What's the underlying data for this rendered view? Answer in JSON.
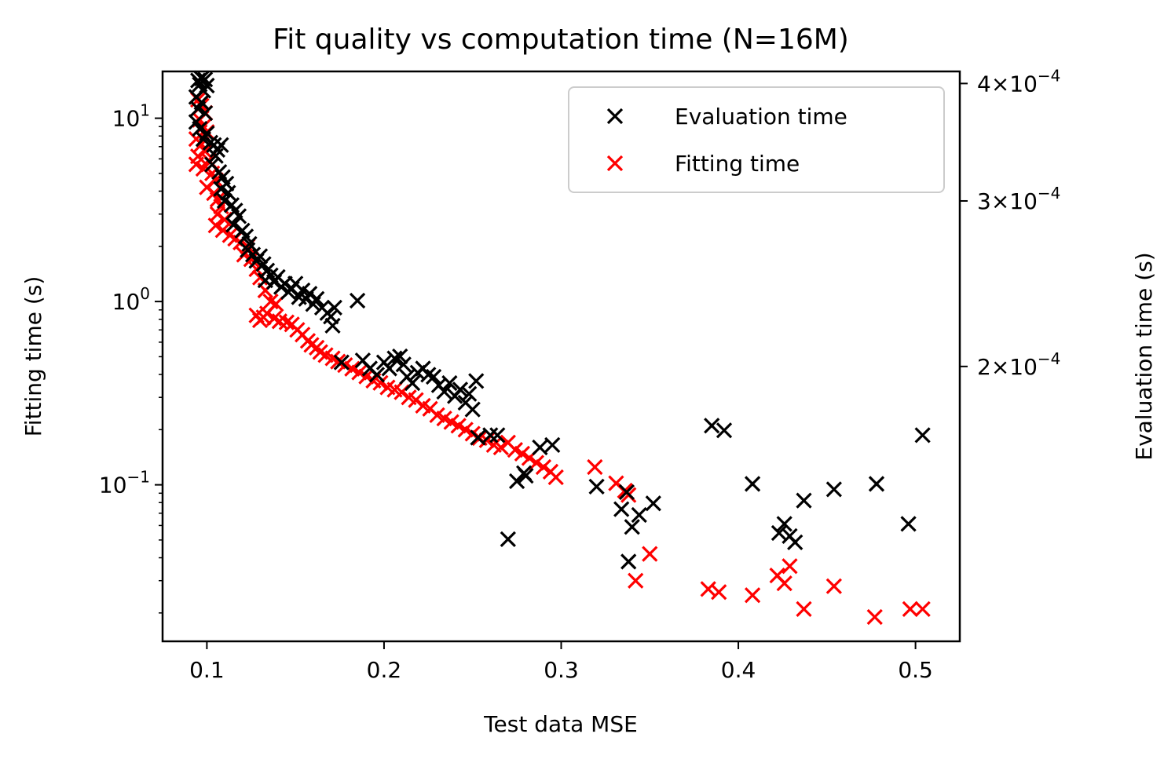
{
  "chart_data": {
    "type": "scatter",
    "title": "Fit quality vs computation time (N=16M)",
    "xlabel": "Test data MSE",
    "ylabel": "Fitting time (s)",
    "y2label": "Evaluation time (s)",
    "xlim": [
      0.075,
      0.525
    ],
    "ylim": [
      0.014,
      18
    ],
    "yscale": "log",
    "y2lim": [
      0.000102,
      0.000412
    ],
    "y2scale": "log",
    "xticks": [
      0.1,
      0.2,
      0.3,
      0.4,
      0.5
    ],
    "xtick_labels": [
      "0.1",
      "0.2",
      "0.3",
      "0.4",
      "0.5"
    ],
    "yticks": [
      0.1,
      1,
      10
    ],
    "ytick_labels": [
      {
        "base": "10",
        "exp": "−1"
      },
      {
        "base": "10",
        "exp": "0"
      },
      {
        "base": "10",
        "exp": "1"
      }
    ],
    "y2ticks": [
      0.0002,
      0.0003,
      0.0004
    ],
    "y2tick_labels": [
      {
        "mant": "2",
        "base": "10",
        "exp": "−4"
      },
      {
        "mant": "3",
        "base": "10",
        "exp": "−4"
      },
      {
        "mant": "4",
        "base": "10",
        "exp": "−4"
      }
    ],
    "grid": false,
    "legend_position": "top-right",
    "series": [
      {
        "name": "Evaluation time",
        "axis": "right",
        "color": "#000000",
        "marker": "x",
        "points": [
          [
            0.095,
            0.000403
          ],
          [
            0.097,
            0.000405
          ],
          [
            0.099,
            0.000404
          ],
          [
            0.096,
            0.000399
          ],
          [
            0.1,
            0.000398
          ],
          [
            0.098,
            0.000393
          ],
          [
            0.094,
            0.000387
          ],
          [
            0.097,
            0.000382
          ],
          [
            0.095,
            0.000376
          ],
          [
            0.099,
            0.000372
          ],
          [
            0.094,
            0.000364
          ],
          [
            0.096,
            0.000358
          ],
          [
            0.1,
            0.000354
          ],
          [
            0.098,
            0.000349
          ],
          [
            0.102,
            0.000346
          ],
          [
            0.104,
            0.000344
          ],
          [
            0.106,
            0.00034
          ],
          [
            0.108,
            0.000344
          ],
          [
            0.105,
            0.000335
          ],
          [
            0.103,
            0.000328
          ],
          [
            0.107,
            0.000322
          ],
          [
            0.109,
            0.000318
          ],
          [
            0.111,
            0.000313
          ],
          [
            0.108,
            0.000309
          ],
          [
            0.112,
            0.000306
          ],
          [
            0.11,
            0.0003
          ],
          [
            0.114,
            0.000297
          ],
          [
            0.116,
            0.000293
          ],
          [
            0.118,
            0.000289
          ],
          [
            0.115,
            0.000283
          ],
          [
            0.12,
            0.000279
          ],
          [
            0.122,
            0.000275
          ],
          [
            0.124,
            0.00027
          ],
          [
            0.123,
            0.000266
          ],
          [
            0.126,
            0.000263
          ],
          [
            0.128,
            0.000259
          ],
          [
            0.13,
            0.000262
          ],
          [
            0.132,
            0.000257
          ],
          [
            0.134,
            0.000253
          ],
          [
            0.136,
            0.00025
          ],
          [
            0.133,
            0.000247
          ],
          [
            0.138,
            0.000246
          ],
          [
            0.14,
            0.000249
          ],
          [
            0.142,
            0.000243
          ],
          [
            0.144,
            0.000245
          ],
          [
            0.146,
            0.00024
          ],
          [
            0.148,
            0.000242
          ],
          [
            0.15,
            0.000245
          ],
          [
            0.152,
            0.000237
          ],
          [
            0.154,
            0.000241
          ],
          [
            0.156,
            0.000236
          ],
          [
            0.158,
            0.000239
          ],
          [
            0.16,
            0.000233
          ],
          [
            0.162,
            0.000236
          ],
          [
            0.165,
            0.000231
          ],
          [
            0.168,
            0.000228
          ],
          [
            0.17,
            0.000226
          ],
          [
            0.172,
            0.000231
          ],
          [
            0.185,
            0.000235
          ],
          [
            0.171,
            0.000221
          ],
          [
            0.176,
            0.000202
          ],
          [
            0.188,
            0.000203
          ],
          [
            0.192,
            0.000199
          ],
          [
            0.196,
            0.000196
          ],
          [
            0.2,
            0.000202
          ],
          [
            0.203,
            0.000199
          ],
          [
            0.206,
            0.000204
          ],
          [
            0.209,
            0.000205
          ],
          [
            0.211,
            0.000201
          ],
          [
            0.213,
            0.000195
          ],
          [
            0.216,
            0.000192
          ],
          [
            0.219,
            0.000197
          ],
          [
            0.222,
            0.000199
          ],
          [
            0.225,
            0.000196
          ],
          [
            0.228,
            0.000195
          ],
          [
            0.231,
            0.000191
          ],
          [
            0.234,
            0.000188
          ],
          [
            0.237,
            0.000192
          ],
          [
            0.24,
            0.000186
          ],
          [
            0.243,
            0.000189
          ],
          [
            0.246,
            0.000183
          ],
          [
            0.248,
            0.000187
          ],
          [
            0.252,
            0.000193
          ],
          [
            0.25,
            0.00018
          ],
          [
            0.253,
            0.000168
          ],
          [
            0.26,
            0.000169
          ],
          [
            0.264,
            0.000169
          ],
          [
            0.27,
            0.000131
          ],
          [
            0.275,
            0.000151
          ],
          [
            0.279,
            0.000154
          ],
          [
            0.28,
            0.000153
          ],
          [
            0.288,
            0.000164
          ],
          [
            0.295,
            0.000165
          ],
          [
            0.32,
            0.000149
          ],
          [
            0.334,
            0.000141
          ],
          [
            0.337,
            0.000147
          ],
          [
            0.338,
            0.000124
          ],
          [
            0.34,
            0.000135
          ],
          [
            0.344,
            0.000139
          ],
          [
            0.352,
            0.000143
          ],
          [
            0.385,
            0.000173
          ],
          [
            0.392,
            0.000171
          ],
          [
            0.408,
            0.00015
          ],
          [
            0.423,
            0.000133
          ],
          [
            0.426,
            0.000136
          ],
          [
            0.429,
            0.000132
          ],
          [
            0.432,
            0.00013
          ],
          [
            0.437,
            0.000144
          ],
          [
            0.454,
            0.000148
          ],
          [
            0.478,
            0.00015
          ],
          [
            0.496,
            0.000136
          ],
          [
            0.504,
            0.000169
          ]
        ]
      },
      {
        "name": "Fitting time",
        "axis": "left",
        "color": "#ff0000",
        "marker": "x",
        "points": [
          [
            0.095,
            12.6
          ],
          [
            0.097,
            11.7
          ],
          [
            0.099,
            10.7
          ],
          [
            0.096,
            9.8
          ],
          [
            0.098,
            9.0
          ],
          [
            0.1,
            8.4
          ],
          [
            0.094,
            7.7
          ],
          [
            0.097,
            7.2
          ],
          [
            0.099,
            6.6
          ],
          [
            0.095,
            6.2
          ],
          [
            0.101,
            5.9
          ],
          [
            0.094,
            5.6
          ],
          [
            0.098,
            5.3
          ],
          [
            0.103,
            5.0
          ],
          [
            0.105,
            4.6
          ],
          [
            0.1,
            4.2
          ],
          [
            0.104,
            3.9
          ],
          [
            0.106,
            3.6
          ],
          [
            0.108,
            3.3
          ],
          [
            0.106,
            3.0
          ],
          [
            0.11,
            2.8
          ],
          [
            0.105,
            2.6
          ],
          [
            0.109,
            2.45
          ],
          [
            0.113,
            2.3
          ],
          [
            0.116,
            2.2
          ],
          [
            0.119,
            2.1
          ],
          [
            0.123,
            2.0
          ],
          [
            0.121,
            1.8
          ],
          [
            0.125,
            1.7
          ],
          [
            0.128,
            1.5
          ],
          [
            0.13,
            1.35
          ],
          [
            0.133,
            1.15
          ],
          [
            0.136,
            1.0
          ],
          [
            0.139,
            0.97
          ],
          [
            0.128,
            0.84
          ],
          [
            0.13,
            0.79
          ],
          [
            0.132,
            0.82
          ],
          [
            0.134,
            0.86
          ],
          [
            0.138,
            0.81
          ],
          [
            0.141,
            0.78
          ],
          [
            0.145,
            0.77
          ],
          [
            0.148,
            0.75
          ],
          [
            0.151,
            0.7
          ],
          [
            0.154,
            0.66
          ],
          [
            0.157,
            0.61
          ],
          [
            0.159,
            0.58
          ],
          [
            0.162,
            0.56
          ],
          [
            0.164,
            0.53
          ],
          [
            0.167,
            0.51
          ],
          [
            0.171,
            0.49
          ],
          [
            0.174,
            0.47
          ],
          [
            0.178,
            0.45
          ],
          [
            0.182,
            0.43
          ],
          [
            0.186,
            0.41
          ],
          [
            0.19,
            0.39
          ],
          [
            0.194,
            0.37
          ],
          [
            0.198,
            0.36
          ],
          [
            0.202,
            0.34
          ],
          [
            0.206,
            0.33
          ],
          [
            0.21,
            0.32
          ],
          [
            0.214,
            0.3
          ],
          [
            0.218,
            0.29
          ],
          [
            0.222,
            0.27
          ],
          [
            0.226,
            0.26
          ],
          [
            0.23,
            0.24
          ],
          [
            0.234,
            0.23
          ],
          [
            0.238,
            0.22
          ],
          [
            0.242,
            0.21
          ],
          [
            0.246,
            0.2
          ],
          [
            0.25,
            0.19
          ],
          [
            0.254,
            0.18
          ],
          [
            0.258,
            0.175
          ],
          [
            0.262,
            0.165
          ],
          [
            0.266,
            0.16
          ],
          [
            0.27,
            0.17
          ],
          [
            0.274,
            0.155
          ],
          [
            0.278,
            0.148
          ],
          [
            0.282,
            0.14
          ],
          [
            0.286,
            0.132
          ],
          [
            0.29,
            0.125
          ],
          [
            0.294,
            0.118
          ],
          [
            0.297,
            0.11
          ],
          [
            0.319,
            0.125
          ],
          [
            0.331,
            0.102
          ],
          [
            0.336,
            0.093
          ],
          [
            0.338,
            0.088
          ],
          [
            0.342,
            0.03
          ],
          [
            0.35,
            0.042
          ],
          [
            0.383,
            0.027
          ],
          [
            0.389,
            0.026
          ],
          [
            0.408,
            0.025
          ],
          [
            0.422,
            0.032
          ],
          [
            0.426,
            0.029
          ],
          [
            0.429,
            0.036
          ],
          [
            0.437,
            0.021
          ],
          [
            0.454,
            0.028
          ],
          [
            0.477,
            0.019
          ],
          [
            0.497,
            0.021
          ],
          [
            0.504,
            0.021
          ]
        ]
      }
    ]
  }
}
